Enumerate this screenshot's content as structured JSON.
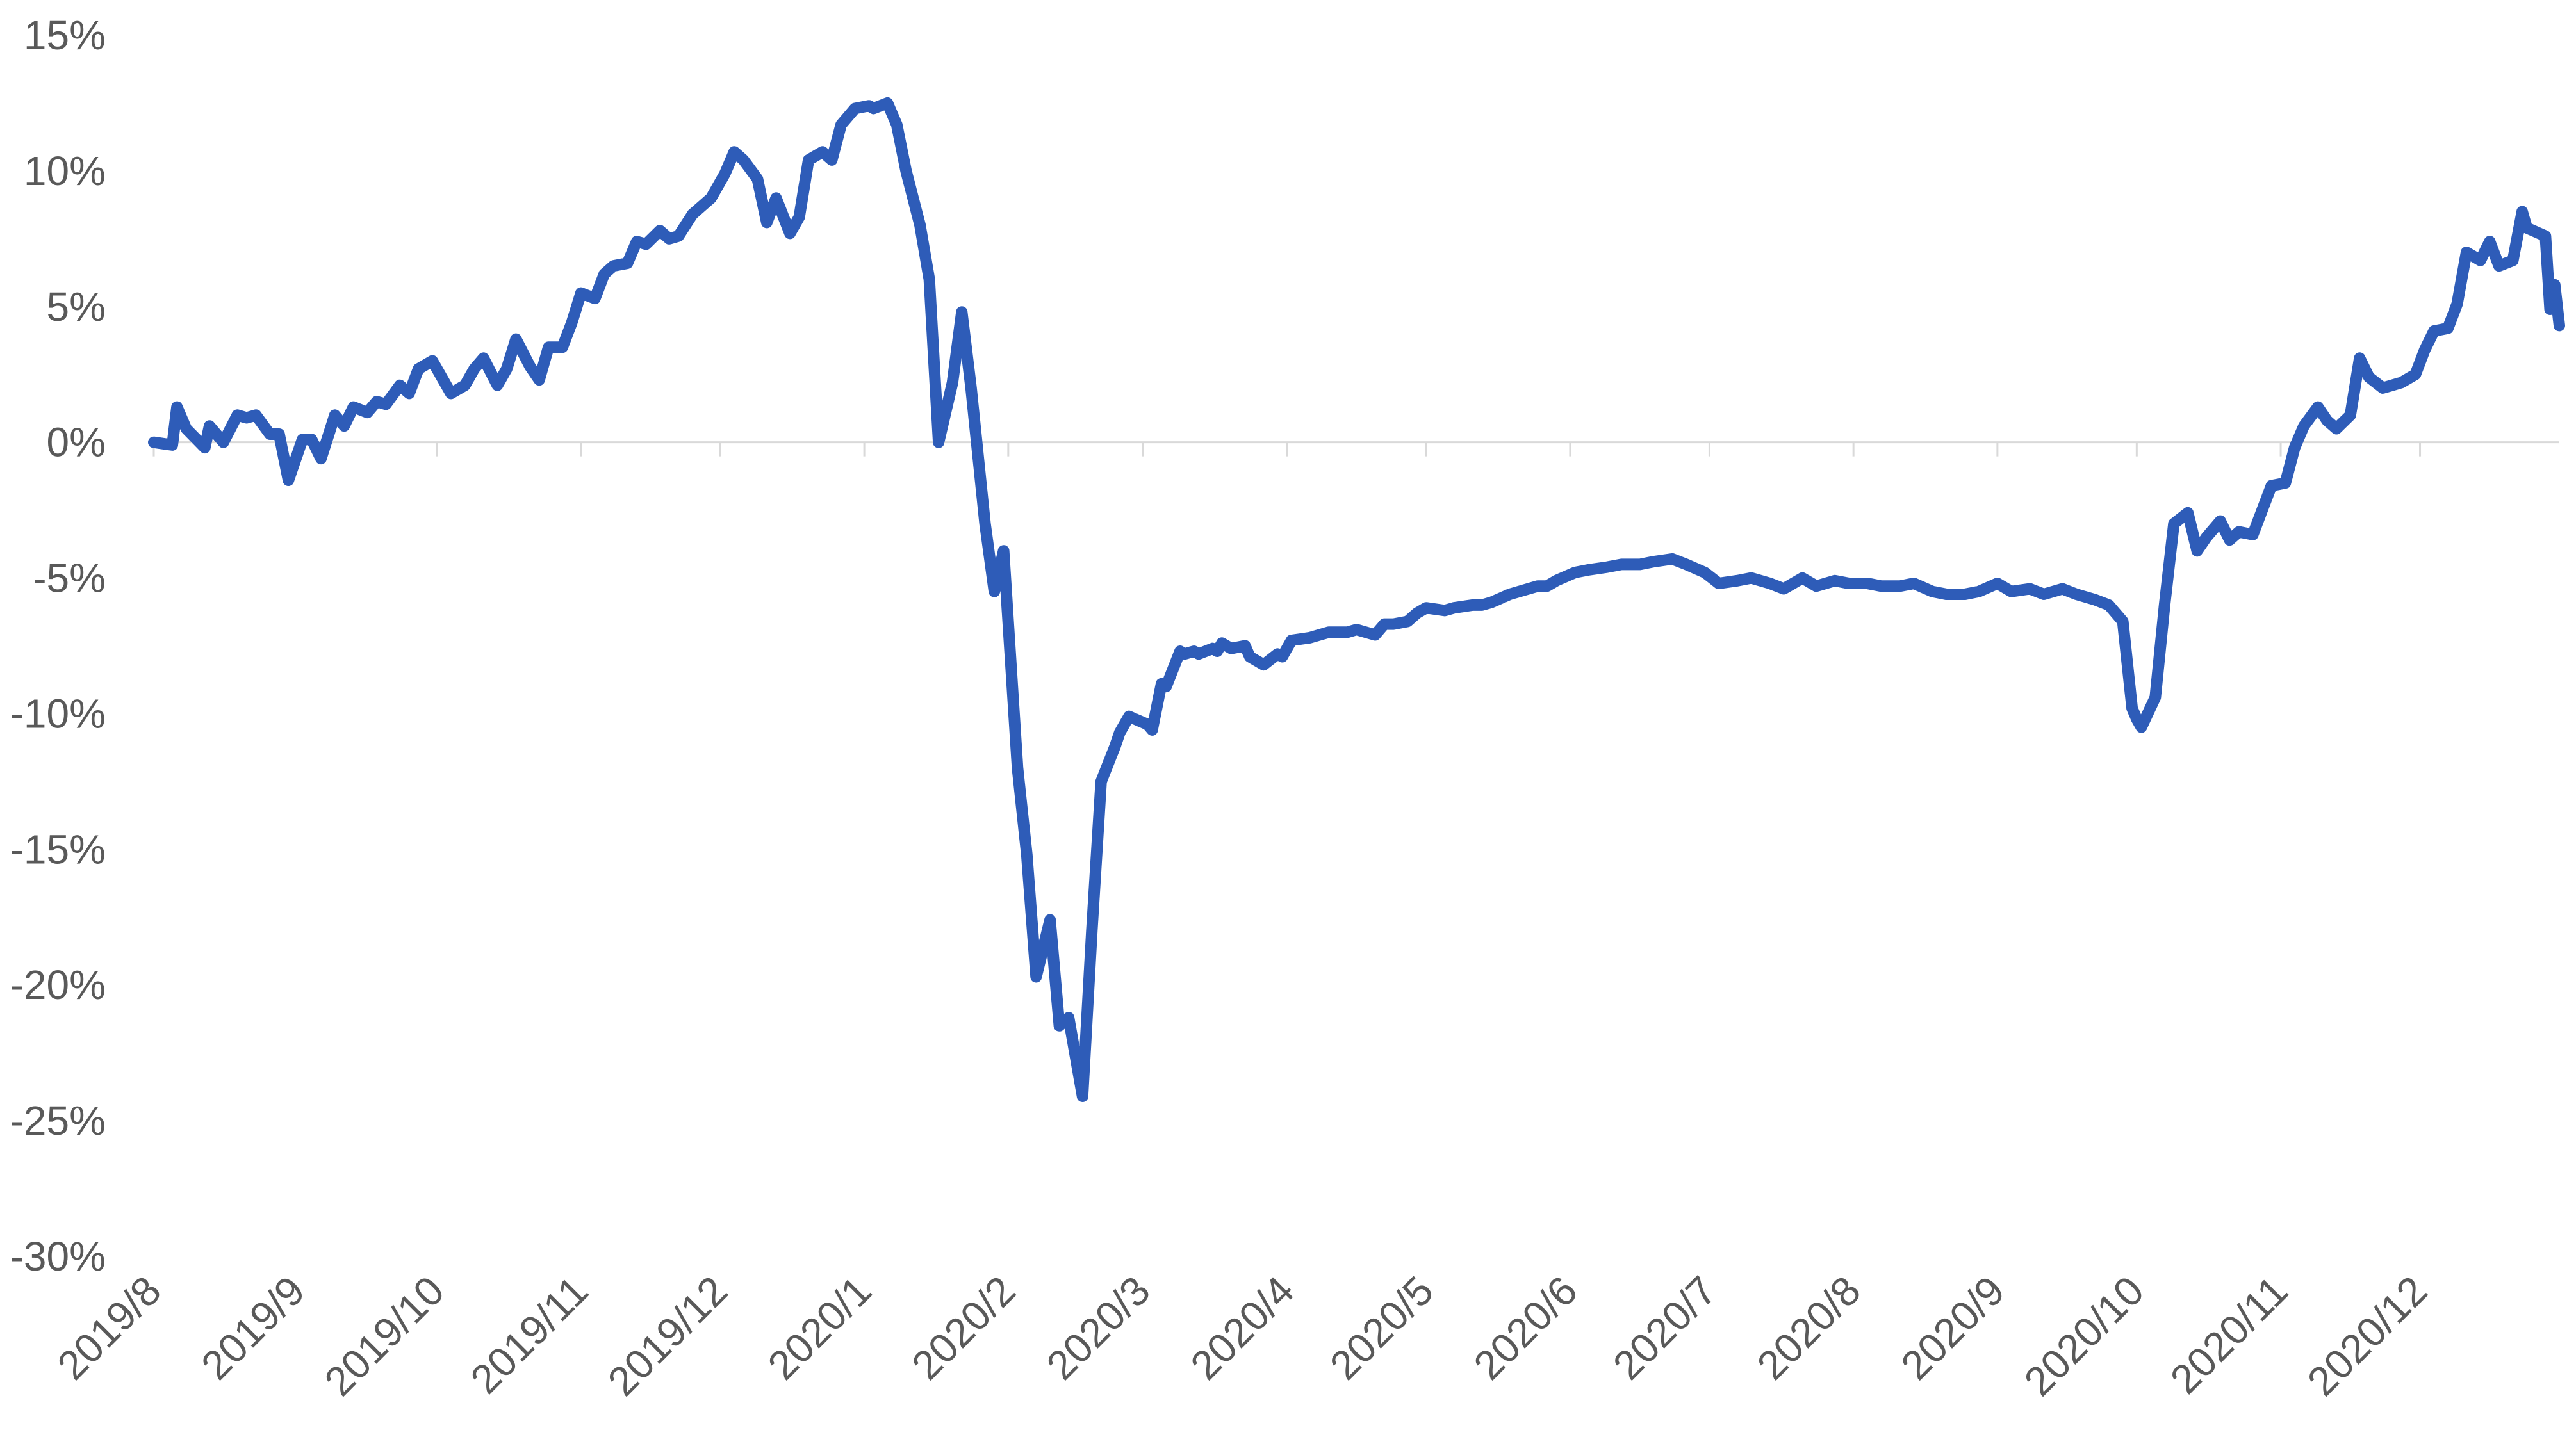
{
  "chart_data": {
    "type": "line",
    "title": "",
    "xlabel": "",
    "ylabel": "",
    "ylim": [
      -30,
      15
    ],
    "y_ticks": [
      15,
      10,
      5,
      0,
      -5,
      -10,
      -15,
      -20,
      -25,
      -30
    ],
    "y_tick_labels": [
      "15%",
      "10%",
      "5%",
      "0%",
      "-5%",
      "-10%",
      "-15%",
      "-20%",
      "-25%",
      "-30%"
    ],
    "x_tick_labels": [
      "2019/8",
      "2019/9",
      "2019/10",
      "2019/11",
      "2019/12",
      "2020/1",
      "2020/2",
      "2020/3",
      "2020/4",
      "2020/5",
      "2020/6",
      "2020/7",
      "2020/8",
      "2020/9",
      "2020/10",
      "2020/11",
      "2020/12"
    ],
    "xlim": [
      "2019-08-01",
      "2020-12-31"
    ],
    "grid": false,
    "legend": "none",
    "line_color": "#2e5cb8",
    "series": [
      {
        "x": [
          "2019-08-01",
          "2019-08-05",
          "2019-08-06",
          "2019-08-08",
          "2019-08-12",
          "2019-08-13",
          "2019-08-16",
          "2019-08-19",
          "2019-08-21",
          "2019-08-23",
          "2019-08-26",
          "2019-08-28",
          "2019-08-30",
          "2019-09-02",
          "2019-09-04",
          "2019-09-06",
          "2019-09-09",
          "2019-09-11",
          "2019-09-13",
          "2019-09-16",
          "2019-09-18",
          "2019-09-20",
          "2019-09-23",
          "2019-09-25",
          "2019-09-27",
          "2019-09-30",
          "2019-10-02",
          "2019-10-04",
          "2019-10-07",
          "2019-10-09",
          "2019-10-11",
          "2019-10-14",
          "2019-10-16",
          "2019-10-18",
          "2019-10-21",
          "2019-10-23",
          "2019-10-25",
          "2019-10-28",
          "2019-10-30",
          "2019-11-01",
          "2019-11-04",
          "2019-11-06",
          "2019-11-08",
          "2019-11-11",
          "2019-11-13",
          "2019-11-15",
          "2019-11-18",
          "2019-11-20",
          "2019-11-22",
          "2019-11-25",
          "2019-11-27",
          "2019-11-29",
          "2019-12-02",
          "2019-12-04",
          "2019-12-06",
          "2019-12-09",
          "2019-12-11",
          "2019-12-13",
          "2019-12-16",
          "2019-12-18",
          "2019-12-20",
          "2019-12-23",
          "2019-12-25",
          "2019-12-27",
          "2019-12-30",
          "2020-01-02",
          "2020-01-03",
          "2020-01-06",
          "2020-01-08",
          "2020-01-10",
          "2020-01-13",
          "2020-01-15",
          "2020-01-17",
          "2020-01-20",
          "2020-01-22",
          "2020-01-24",
          "2020-01-27",
          "2020-01-29",
          "2020-01-31",
          "2020-02-03",
          "2020-02-05",
          "2020-02-07",
          "2020-02-10",
          "2020-02-12",
          "2020-02-14",
          "2020-02-17",
          "2020-02-19",
          "2020-02-21",
          "2020-02-24",
          "2020-02-25",
          "2020-02-27",
          "2020-03-02",
          "2020-03-03",
          "2020-03-05",
          "2020-03-06",
          "2020-03-09",
          "2020-03-10",
          "2020-03-12",
          "2020-03-13",
          "2020-03-16",
          "2020-03-17",
          "2020-03-18",
          "2020-03-19",
          "2020-03-20",
          "2020-03-23",
          "2020-03-24",
          "2020-03-25",
          "2020-03-26",
          "2020-03-27",
          "2020-03-30",
          "2020-03-31",
          "2020-04-02",
          "2020-04-06",
          "2020-04-08",
          "2020-04-10",
          "2020-04-14",
          "2020-04-16",
          "2020-04-20",
          "2020-04-22",
          "2020-04-24",
          "2020-04-27",
          "2020-04-29",
          "2020-05-01",
          "2020-05-05",
          "2020-05-07",
          "2020-05-11",
          "2020-05-13",
          "2020-05-15",
          "2020-05-19",
          "2020-05-21",
          "2020-05-25",
          "2020-05-27",
          "2020-05-29",
          "2020-06-02",
          "2020-06-05",
          "2020-06-09",
          "2020-06-12",
          "2020-06-16",
          "2020-06-19",
          "2020-06-23",
          "2020-06-26",
          "2020-06-30",
          "2020-07-03",
          "2020-07-07",
          "2020-07-10",
          "2020-07-14",
          "2020-07-17",
          "2020-07-21",
          "2020-07-24",
          "2020-07-28",
          "2020-07-31",
          "2020-08-04",
          "2020-08-07",
          "2020-08-11",
          "2020-08-14",
          "2020-08-18",
          "2020-08-21",
          "2020-08-25",
          "2020-08-28",
          "2020-09-01",
          "2020-09-04",
          "2020-09-08",
          "2020-09-11",
          "2020-09-15",
          "2020-09-18",
          "2020-09-22",
          "2020-09-25",
          "2020-09-28",
          "2020-09-30",
          "2020-10-01",
          "2020-10-02",
          "2020-10-05",
          "2020-10-07",
          "2020-10-09",
          "2020-10-12",
          "2020-10-14",
          "2020-10-16",
          "2020-10-19",
          "2020-10-21",
          "2020-10-23",
          "2020-10-26",
          "2020-10-28",
          "2020-10-30",
          "2020-11-02",
          "2020-11-04",
          "2020-11-06",
          "2020-11-09",
          "2020-11-11",
          "2020-11-13",
          "2020-11-16",
          "2020-11-18",
          "2020-11-20",
          "2020-11-23",
          "2020-11-25",
          "2020-11-27",
          "2020-11-30",
          "2020-12-02",
          "2020-12-04",
          "2020-12-07",
          "2020-12-09",
          "2020-12-11",
          "2020-12-14",
          "2020-12-16",
          "2020-12-18",
          "2020-12-21",
          "2020-12-23",
          "2020-12-24",
          "2020-12-28",
          "2020-12-29",
          "2020-12-30",
          "2020-12-31"
        ],
        "y": [
          0.0,
          -0.1,
          1.3,
          0.5,
          -0.2,
          0.6,
          0.0,
          1.0,
          0.9,
          1.0,
          0.3,
          0.3,
          -1.4,
          0.1,
          0.1,
          -0.6,
          1.0,
          0.6,
          1.3,
          1.1,
          1.5,
          1.4,
          2.1,
          1.8,
          2.7,
          3.0,
          2.4,
          1.8,
          2.1,
          2.7,
          3.1,
          2.1,
          2.7,
          3.8,
          2.8,
          2.3,
          3.5,
          3.5,
          4.4,
          5.5,
          5.3,
          6.2,
          6.5,
          6.6,
          7.4,
          7.3,
          7.8,
          7.5,
          7.6,
          8.4,
          8.7,
          9.0,
          9.9,
          10.7,
          10.4,
          9.7,
          8.1,
          9.0,
          7.7,
          8.3,
          10.4,
          10.7,
          10.4,
          11.7,
          12.3,
          12.4,
          12.3,
          12.5,
          11.7,
          10.0,
          8.0,
          6.0,
          0.0,
          2.2,
          4.8,
          2.0,
          -3.0,
          -5.5,
          -4.0,
          -12.0,
          -15.2,
          -19.7,
          -17.6,
          -21.5,
          -21.2,
          -24.1,
          -18.0,
          -12.5,
          -11.2,
          -10.7,
          -10.1,
          -10.4,
          -10.6,
          -8.9,
          -9.0,
          -7.7,
          -7.8,
          -7.7,
          -7.8,
          -7.6,
          -7.7,
          -7.4,
          -7.5,
          -7.6,
          -7.5,
          -7.9,
          -8.0,
          -8.1,
          -8.2,
          -7.8,
          -7.9,
          -7.3,
          -7.2,
          -7.1,
          -7.0,
          -7.0,
          -6.9,
          -7.1,
          -6.7,
          -6.7,
          -6.6,
          -6.3,
          -6.1,
          -6.2,
          -6.1,
          -6.0,
          -6.0,
          -5.9,
          -5.6,
          -5.5,
          -5.3,
          -5.3,
          -5.1,
          -4.8,
          -4.7,
          -4.6,
          -4.5,
          -4.5,
          -4.4,
          -4.3,
          -4.5,
          -4.8,
          -5.2,
          -5.1,
          -5.0,
          -5.2,
          -5.4,
          -5.0,
          -5.3,
          -5.1,
          -5.2,
          -5.2,
          -5.3,
          -5.3,
          -5.2,
          -5.5,
          -5.6,
          -5.6,
          -5.5,
          -5.2,
          -5.5,
          -5.4,
          -5.6,
          -5.4,
          -5.6,
          -5.8,
          -6.0,
          -6.6,
          -9.8,
          -10.2,
          -10.5,
          -9.4,
          -6.0,
          -3.0,
          -2.6,
          -4.0,
          -3.5,
          -2.9,
          -3.6,
          -3.3,
          -3.4,
          -2.5,
          -1.6,
          -1.5,
          -0.2,
          0.6,
          1.3,
          0.8,
          0.5,
          1.0,
          3.1,
          2.4,
          2.0,
          2.1,
          2.2,
          2.5,
          3.4,
          4.1,
          4.2,
          5.1,
          7.0,
          6.7,
          7.4,
          6.5,
          6.7,
          8.5,
          7.9,
          7.6,
          4.9,
          5.8,
          4.3
        ]
      }
    ]
  }
}
